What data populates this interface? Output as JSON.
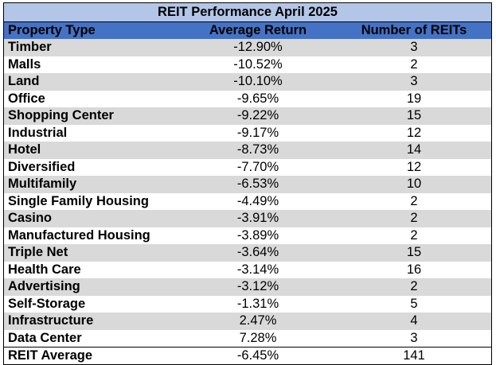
{
  "table": {
    "title": "REIT Performance April 2025",
    "headers": [
      "Property Type",
      "Average Return",
      "Number of REITs"
    ],
    "rows": [
      {
        "type": "Timber",
        "return": "-12.90%",
        "count": "3"
      },
      {
        "type": "Malls",
        "return": "-10.52%",
        "count": "2"
      },
      {
        "type": "Land",
        "return": "-10.10%",
        "count": "3"
      },
      {
        "type": "Office",
        "return": "-9.65%",
        "count": "19"
      },
      {
        "type": "Shopping Center",
        "return": "-9.22%",
        "count": "15"
      },
      {
        "type": "Industrial",
        "return": "-9.17%",
        "count": "12"
      },
      {
        "type": "Hotel",
        "return": "-8.73%",
        "count": "14"
      },
      {
        "type": "Diversified",
        "return": "-7.70%",
        "count": "12"
      },
      {
        "type": "Multifamily",
        "return": "-6.53%",
        "count": "10"
      },
      {
        "type": "Single Family Housing",
        "return": "-4.49%",
        "count": "2"
      },
      {
        "type": "Casino",
        "return": "-3.91%",
        "count": "2"
      },
      {
        "type": "Manufactured Housing",
        "return": "-3.89%",
        "count": "2"
      },
      {
        "type": "Triple Net",
        "return": "-3.64%",
        "count": "15"
      },
      {
        "type": "Health Care",
        "return": "-3.14%",
        "count": "16"
      },
      {
        "type": "Advertising",
        "return": "-3.12%",
        "count": "2"
      },
      {
        "type": "Self-Storage",
        "return": "-1.31%",
        "count": "5"
      },
      {
        "type": "Infrastructure",
        "return": "2.47%",
        "count": "4"
      },
      {
        "type": "Data Center",
        "return": "7.28%",
        "count": "3"
      }
    ],
    "total": {
      "type": "REIT Average",
      "return": "-6.45%",
      "count": "141"
    }
  },
  "colors": {
    "title_background": "#b4c6e7",
    "header_background": "#4472c4",
    "shaded_row": "#d9d9d9"
  }
}
